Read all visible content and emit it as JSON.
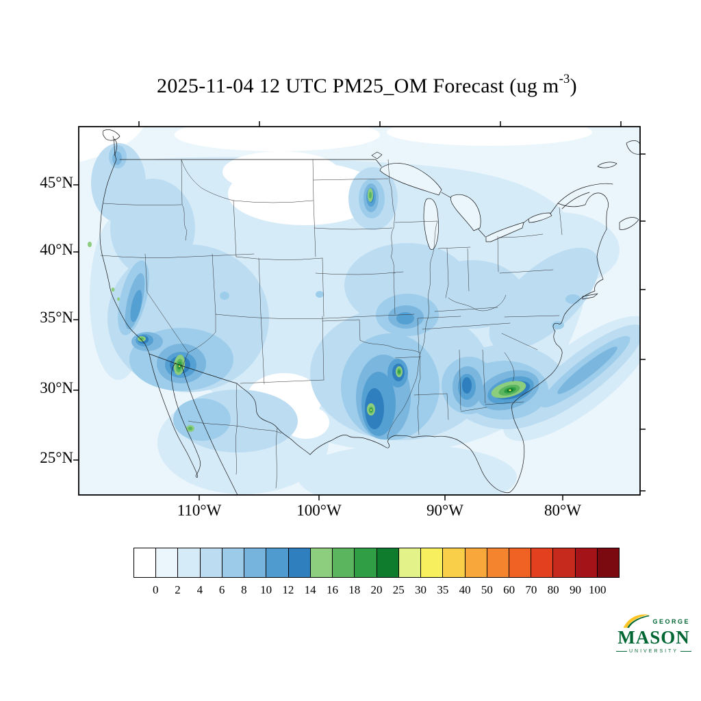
{
  "title": {
    "prefix": "2025-11-04 12 UTC PM25_OM Forecast (ug m",
    "superscript": "-3",
    "suffix": ")"
  },
  "map": {
    "lat_labels": [
      "45°N",
      "40°N",
      "35°N",
      "30°N",
      "25°N"
    ],
    "lon_labels": [
      "110°W",
      "100°W",
      "90°W",
      "80°W"
    ]
  },
  "colorbar": {
    "labels": [
      "0",
      "2",
      "4",
      "6",
      "8",
      "10",
      "12",
      "14",
      "16",
      "18",
      "20",
      "25",
      "30",
      "35",
      "40",
      "50",
      "60",
      "70",
      "80",
      "90",
      "100"
    ],
    "colors": [
      "#ffffff",
      "#ebf6fc",
      "#d6ebf8",
      "#bcdcf2",
      "#9bcbe9",
      "#76b4dd",
      "#4f9bd0",
      "#2f7fbe",
      "#8ccd7e",
      "#5ab55e",
      "#2f9e44",
      "#0f7c2d",
      "#e4f28a",
      "#f7ef5e",
      "#f9cf4a",
      "#f8a83b",
      "#f4842d",
      "#ef6223",
      "#e2401f",
      "#c62a1c",
      "#a31318",
      "#7a0a10"
    ]
  },
  "logo": {
    "line1": "GEORGE",
    "line2": "MASON",
    "line3": "UNIVERSITY",
    "green": "#006633",
    "gold": "#FFC425"
  },
  "chart_data": {
    "type": "heatmap",
    "subtype": "filled-contour-forecast-map",
    "title": "2025-11-04 12 UTC PM25_OM Forecast (ug m-3)",
    "variable": "PM25_OM",
    "units": "ug m-3",
    "valid_time": "2025-11-04 12 UTC",
    "region": "Contiguous United States with parts of Canada and Mexico",
    "x_axis": {
      "label": "",
      "tick_labels": [
        "110°W",
        "100°W",
        "90°W",
        "80°W"
      ]
    },
    "y_axis": {
      "label": "",
      "tick_labels": [
        "45°N",
        "40°N",
        "35°N",
        "30°N",
        "25°N"
      ]
    },
    "contour_levels": [
      0,
      2,
      4,
      6,
      8,
      10,
      12,
      14,
      16,
      18,
      20,
      25,
      30,
      35,
      40,
      50,
      60,
      70,
      80,
      90,
      100
    ],
    "colors": [
      "#ffffff",
      "#ebf6fc",
      "#d6ebf8",
      "#bcdcf2",
      "#9bcbe9",
      "#76b4dd",
      "#4f9bd0",
      "#2f7fbe",
      "#8ccd7e",
      "#5ab55e",
      "#2f9e44",
      "#0f7c2d",
      "#e4f28a",
      "#f7ef5e",
      "#f9cf4a",
      "#f8a83b",
      "#f4842d",
      "#ef6223",
      "#e2401f",
      "#c62a1c",
      "#a31318",
      "#7a0a10"
    ],
    "legend_position": "bottom",
    "background_field": "0-2 ug m-3 over oceans and most low-concentration land areas",
    "hotspots": [
      {
        "location": "Los Angeles basin, southern California",
        "approx_value": "12-18"
      },
      {
        "location": "California Central Valley",
        "approx_value": "10-16"
      },
      {
        "location": "Central/southern Arizona (Phoenix area)",
        "approx_value": "16-25"
      },
      {
        "location": "Northwestern Mexico (Sonora)",
        "approx_value": "14-18"
      },
      {
        "location": "South Texas coastal bend",
        "approx_value": "16-25"
      },
      {
        "location": "East Texas / Louisiana",
        "approx_value": "14-20"
      },
      {
        "location": "Georgia / southeastern US",
        "approx_value": "20-30"
      },
      {
        "location": "Minnesota",
        "approx_value": "14-18"
      },
      {
        "location": "Broad southern and southeastern US",
        "approx_value": "4-10"
      },
      {
        "location": "Atlantic offshore plume from southeast coast",
        "approx_value": "4-8"
      }
    ]
  }
}
